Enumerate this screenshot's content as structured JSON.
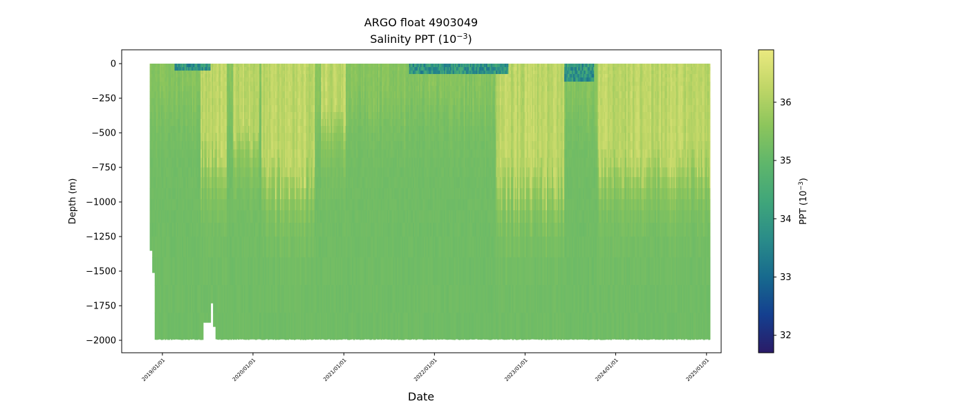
{
  "chart_data": {
    "type": "heatmap",
    "title": "ARGO float 4903049",
    "subtitle_prefix": "Salinity PPT (10",
    "subtitle_exp": "−3",
    "subtitle_suffix": ")",
    "xlabel": "Date",
    "ylabel": "Depth (m)",
    "xlim": [
      "2018-07-21",
      "2025-03-01"
    ],
    "ylim": [
      -2090,
      100
    ],
    "x_ticks": [
      {
        "date": "2019-01-01",
        "label": "2019/01/01"
      },
      {
        "date": "2020-01-01",
        "label": "2020/01/01"
      },
      {
        "date": "2021-01-01",
        "label": "2021/01/01"
      },
      {
        "date": "2022-01-01",
        "label": "2022/01/01"
      },
      {
        "date": "2023-01-01",
        "label": "2023/01/01"
      },
      {
        "date": "2024-01-01",
        "label": "2024/01/01"
      },
      {
        "date": "2025-01-01",
        "label": "2025/01/01"
      }
    ],
    "y_ticks": [
      {
        "value": 0,
        "label": "0"
      },
      {
        "value": -250,
        "label": "−250"
      },
      {
        "value": -500,
        "label": "−500"
      },
      {
        "value": -750,
        "label": "−750"
      },
      {
        "value": -1000,
        "label": "−1000"
      },
      {
        "value": -1250,
        "label": "−1250"
      },
      {
        "value": -1500,
        "label": "−1500"
      },
      {
        "value": -1750,
        "label": "−1750"
      },
      {
        "value": -2000,
        "label": "−2000"
      }
    ],
    "data_range": {
      "start": "2018-11-11",
      "end": "2025-01-15",
      "max_depth": -1995
    },
    "colorbar": {
      "label_prefix": "PPT (10",
      "label_exp": "−3",
      "label_suffix": ")",
      "vmin": 31.7,
      "vmax": 36.9,
      "ticks": [
        {
          "value": 32,
          "label": "32"
        },
        {
          "value": 33,
          "label": "33"
        },
        {
          "value": 34,
          "label": "34"
        },
        {
          "value": 35,
          "label": "35"
        },
        {
          "value": 36,
          "label": "36"
        }
      ],
      "colormap": "haline",
      "colors": [
        "#2a1b67",
        "#143f8f",
        "#176a8e",
        "#2a8c89",
        "#40a67a",
        "#5fb66b",
        "#8cc55c",
        "#c0d667",
        "#eae97f"
      ]
    },
    "high_salinity_periods": [
      {
        "start": "2019-06-01",
        "end": "2019-09-15",
        "depth": -700
      },
      {
        "start": "2019-10-10",
        "end": "2020-01-25",
        "depth": -600
      },
      {
        "start": "2020-02-01",
        "end": "2020-09-05",
        "depth": -900
      },
      {
        "start": "2020-10-01",
        "end": "2021-01-05",
        "depth": -450
      },
      {
        "start": "2022-09-05",
        "end": "2023-06-05",
        "depth": -950
      },
      {
        "start": "2023-10-20",
        "end": "2025-01-15",
        "depth": -800
      }
    ],
    "low_salinity_surface_events": [
      {
        "start": "2019-02-15",
        "end": "2019-07-10",
        "depth": -60
      },
      {
        "start": "2021-09-20",
        "end": "2022-10-25",
        "depth": -80
      },
      {
        "start": "2023-06-05",
        "end": "2023-10-05",
        "depth": -120
      }
    ],
    "shallow_profiles": [
      {
        "start": "2019-06-10",
        "end": "2019-07-12",
        "depth": -1870
      },
      {
        "start": "2019-07-12",
        "end": "2019-07-22",
        "depth": -1730
      },
      {
        "start": "2019-07-22",
        "end": "2019-08-02",
        "depth": -1900
      }
    ],
    "deep_value": 35.2,
    "surface_high_value": 36.7
  }
}
